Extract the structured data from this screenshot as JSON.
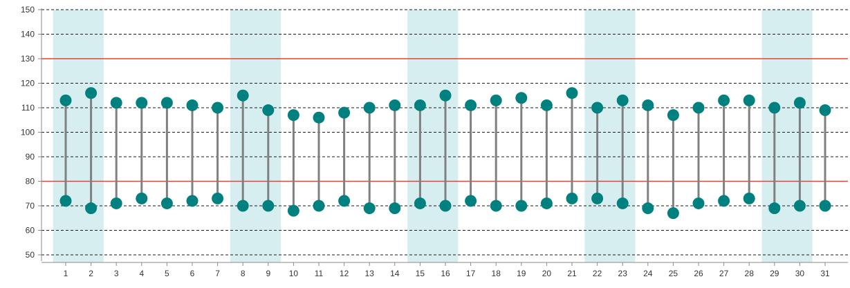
{
  "chart_data": {
    "type": "dumbbell",
    "title": "",
    "xlabel": "",
    "ylabel": "",
    "categories": [
      1,
      2,
      3,
      4,
      5,
      6,
      7,
      8,
      9,
      10,
      11,
      12,
      13,
      14,
      15,
      16,
      17,
      18,
      19,
      20,
      21,
      22,
      23,
      24,
      25,
      26,
      27,
      28,
      29,
      30,
      31
    ],
    "series": [
      {
        "values": [
          113,
          116,
          112,
          112,
          112,
          111,
          110,
          115,
          109,
          107,
          106,
          108,
          110,
          111,
          111,
          115,
          111,
          113,
          114,
          111,
          116,
          110,
          113,
          111,
          107,
          110,
          113,
          113,
          110,
          112,
          109
        ]
      },
      {
        "values": [
          72,
          69,
          71,
          73,
          71,
          72,
          73,
          70,
          70,
          68,
          70,
          72,
          69,
          69,
          71,
          70,
          72,
          70,
          70,
          71,
          73,
          73,
          71,
          69,
          67,
          71,
          72,
          73,
          69,
          70,
          70
        ]
      }
    ],
    "ylim": [
      47,
      150
    ],
    "yticks": [
      50,
      60,
      70,
      80,
      90,
      100,
      110,
      120,
      130,
      140,
      150
    ],
    "reference_lines": [
      130,
      80
    ],
    "shaded_bands": [
      [
        1,
        2
      ],
      [
        8,
        9
      ],
      [
        15,
        16
      ],
      [
        22,
        23
      ],
      [
        29,
        30
      ]
    ],
    "grid": "horizontal dashed",
    "colors": {
      "marker": "#00807f",
      "stem": "#808080",
      "reference_line": "#e8402a",
      "band": "#d6eef0",
      "grid": "#1a1a1a",
      "axis": "#888888"
    }
  }
}
